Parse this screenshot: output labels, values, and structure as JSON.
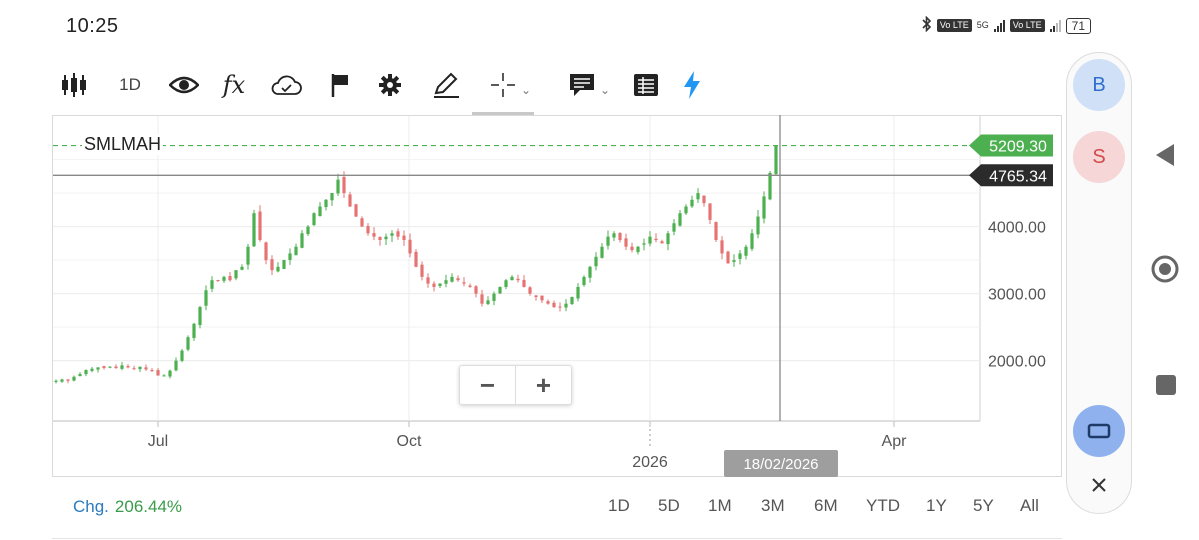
{
  "status": {
    "time": "10:25",
    "network_label": "5G",
    "volte_label_1": "Vo LTE",
    "volte_label_2": "Vo LTE",
    "battery": "71"
  },
  "toolbar": {
    "interval_label": "1D",
    "icons": [
      "candlestick-icon",
      "eye-icon",
      "function-icon",
      "cloud-check-icon",
      "flag-icon",
      "gear-icon",
      "pencil-icon",
      "crosshair-icon",
      "comment-icon",
      "table-icon",
      "lightning-icon"
    ],
    "function_label": "fx",
    "accent_color": "#2196f3"
  },
  "chart": {
    "symbol": "SMLMAH",
    "last_price_label": "5209.30",
    "crosshair_price_label": "4765.34",
    "crosshair_date_label": "18/02/2026",
    "last_price_color": "#4caf50",
    "up_color": "#4caf50",
    "down_color": "#e57373"
  },
  "zoom": {
    "minus": "−",
    "plus": "+"
  },
  "chart_data": {
    "type": "candlestick",
    "y_ticks": [
      "4000.00",
      "3000.00",
      "2000.00"
    ],
    "y_tick_values": [
      4000,
      3000,
      2000
    ],
    "ylim": [
      1100,
      5650
    ],
    "x_labels": [
      "Jul",
      "Oct",
      "2026",
      "Apr"
    ],
    "closes": [
      1700,
      1720,
      1700,
      1760,
      1800,
      1860,
      1880,
      1900,
      1890,
      1910,
      1890,
      1930,
      1900,
      1880,
      1910,
      1870,
      1850,
      1780,
      1780,
      1850,
      2000,
      2150,
      2350,
      2550,
      2800,
      3050,
      3200,
      3200,
      3250,
      3200,
      3350,
      3400,
      3700,
      4200,
      3800,
      3500,
      3350,
      3400,
      3500,
      3600,
      3700,
      3900,
      4000,
      4200,
      4300,
      4400,
      4500,
      4700,
      4500,
      4300,
      4150,
      4000,
      3900,
      3850,
      3800,
      3850,
      3900,
      3850,
      3800,
      3600,
      3400,
      3250,
      3150,
      3100,
      3150,
      3200,
      3250,
      3200,
      3150,
      3100,
      3000,
      2850,
      2900,
      3000,
      3100,
      3200,
      3250,
      3200,
      3100,
      3000,
      2950,
      2900,
      2850,
      2800,
      2800,
      2850,
      2950,
      3100,
      3250,
      3400,
      3550,
      3700,
      3850,
      3900,
      3800,
      3700,
      3650,
      3700,
      3750,
      3850,
      3800,
      3750,
      3900,
      4050,
      4200,
      4300,
      4400,
      4500,
      4350,
      4100,
      3800,
      3600,
      3450,
      3500,
      3600,
      3700,
      3900,
      4150,
      4450,
      4800,
      5209.3
    ],
    "summary": {
      "change_label": "Chg.",
      "change_value": "206.44%"
    }
  },
  "ranges": [
    "1D",
    "5D",
    "1M",
    "3M",
    "6M",
    "YTD",
    "1Y",
    "5Y",
    "All"
  ],
  "side_panel": {
    "buy": "B",
    "sell": "S"
  }
}
